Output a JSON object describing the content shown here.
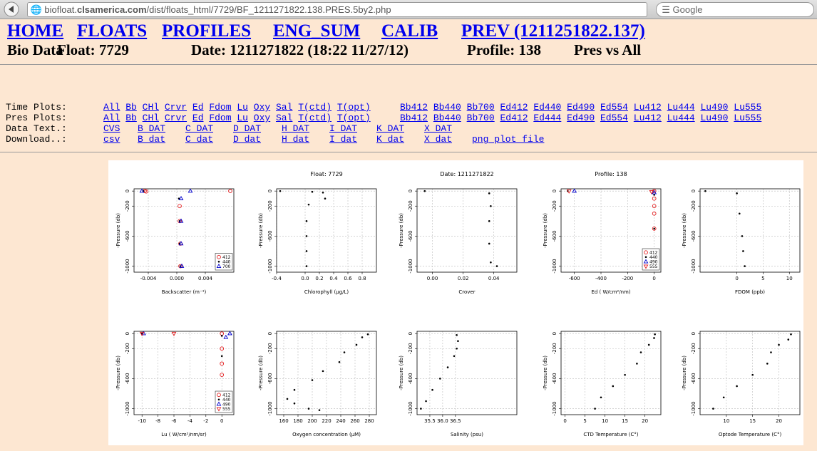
{
  "browser": {
    "url_prefix": "biofloat.",
    "url_domain": "clsamerica.com",
    "url_path": "/dist/floats_html/7729/BF_1211271822.138.PRES.5by2.php",
    "search": "Google"
  },
  "nav": [
    "HOME",
    "FLOATS",
    "PROFILES",
    "ENG_SUM",
    "CALIB",
    "PREV (1211251822.137)"
  ],
  "info": [
    "Bio Data",
    "Float: 7729",
    "Date: 1211271822 (18:22 11/27/12)",
    "Profile: 138",
    "Pres vs All"
  ],
  "link_table": [
    {
      "label": "Time Plots:",
      "groups": [
        [
          "All",
          "Bb",
          "CHl",
          "Crvr",
          "Ed",
          "Fdom",
          "Lu",
          "Oxy",
          "Sal",
          "T(ctd)",
          "T(opt)"
        ],
        [
          "Bb412",
          "Bb440",
          "Bb700",
          "Ed412",
          "Ed440",
          "Ed490",
          "Ed554",
          "Lu412",
          "Lu444",
          "Lu490",
          "Lu555"
        ]
      ]
    },
    {
      "label": "Pres Plots:",
      "groups": [
        [
          "All",
          "Bb",
          "CHl",
          "Crvr",
          "Ed",
          "Fdom",
          "Lu",
          "Oxy",
          "Sal",
          "T(ctd)",
          "T(opt)"
        ],
        [
          "Bb412",
          "Bb440",
          "Bb700",
          "Ed412",
          "Ed444",
          "Ed490",
          "Ed554",
          "Lu412",
          "Lu444",
          "Lu490",
          "Lu555"
        ]
      ]
    },
    {
      "label": "Data Text.:",
      "groups": [
        [
          "CVS",
          "B DAT",
          "C DAT",
          "D DAT",
          "H DAT",
          "I DAT",
          "K DAT",
          "X DAT"
        ]
      ]
    },
    {
      "label": "Download..:",
      "groups": [
        [
          "csv",
          "B dat",
          "C dat",
          "D dat",
          "H dat",
          "I dat",
          "K dat",
          "X dat",
          "png plot file"
        ]
      ]
    }
  ],
  "plots": {
    "titles": [
      "Float: 7729",
      "Date: 1211271822",
      "Profile: 138"
    ],
    "ylabel": "-Pressure (db)",
    "ylim": [
      -1080,
      30
    ],
    "yticks": [
      0,
      -200,
      -600,
      -1000
    ],
    "panels": [
      {
        "xlabel": "Backscatter (m⁻¹)",
        "xlim": [
          -0.006,
          0.008
        ],
        "xticks": [
          -0.004,
          {
            "value": 0,
            "label": "0.000"
          },
          0.004
        ],
        "legend": true,
        "series": [
          {
            "name": "412",
            "color": "#e41a1c",
            "marker": "circle-open",
            "x": [
              -0.0045,
              -0.0043,
              0.0075,
              0.0004,
              0.0004,
              0.0005,
              0.0005
            ],
            "y": [
              0,
              -5,
              0,
              -200,
              -400,
              -700,
              -1000
            ]
          },
          {
            "name": "440",
            "color": "#000000",
            "marker": "dot",
            "x": [
              -0.0047,
              0.0003,
              0.0004,
              0.0004,
              0.0005
            ],
            "y": [
              0,
              -100,
              -400,
              -700,
              -1000
            ]
          },
          {
            "name": "700",
            "color": "#0000cc",
            "marker": "triangle",
            "x": [
              -0.0049,
              0.0019,
              0.0006,
              0.0006,
              0.0006,
              0.0007
            ],
            "y": [
              0,
              0,
              -100,
              -400,
              -700,
              -1000
            ]
          }
        ]
      },
      {
        "xlabel": "Chlorophyll (µg/L)",
        "xlim": [
          -0.4,
          1.0
        ],
        "xticks": [
          -0.4,
          {
            "value": 0,
            "label": "0.0"
          },
          0.2,
          0.4,
          0.6,
          0.8
        ],
        "legend": false,
        "series": [
          {
            "color": "#000000",
            "marker": "dot",
            "x": [
              -0.35,
              0.1,
              0.25,
              0.28,
              0.05,
              0.02,
              0.02,
              0.02,
              0.02
            ],
            "y": [
              0,
              -10,
              -20,
              -100,
              -180,
              -400,
              -600,
              -800,
              -1000
            ]
          }
        ]
      },
      {
        "xlabel": "Crover",
        "xlim": [
          -0.01,
          0.055
        ],
        "xticks": [
          {
            "value": 0,
            "label": "0.00"
          },
          0.02,
          0.04
        ],
        "legend": false,
        "series": [
          {
            "color": "#000000",
            "marker": "dot",
            "x": [
              -0.005,
              0.037,
              0.038,
              0.037,
              0.037,
              0.038,
              0.042
            ],
            "y": [
              0,
              -30,
              -200,
              -400,
              -700,
              -950,
              -1000
            ]
          }
        ]
      },
      {
        "xlabel": "Ed ( W/cm²/nm)",
        "xlim": [
          -700,
          50
        ],
        "xticks": [
          -600,
          -400,
          -200,
          0
        ],
        "legend": true,
        "series": [
          {
            "name": "412",
            "color": "#e41a1c",
            "marker": "circle-open",
            "x": [
              0,
              0,
              0,
              0,
              0
            ],
            "y": [
              0,
              -100,
              -200,
              -300,
              -500
            ]
          },
          {
            "name": "440",
            "color": "#000000",
            "marker": "dot",
            "x": [
              -650,
              0,
              0
            ],
            "y": [
              0,
              -50,
              -500
            ]
          },
          {
            "name": "490",
            "color": "#0000cc",
            "marker": "triangle",
            "x": [
              -600,
              0
            ],
            "y": [
              0,
              -20
            ]
          },
          {
            "name": "555",
            "color": "#e41a1c",
            "marker": "triangle-down",
            "x": [
              -640,
              -20
            ],
            "y": [
              0,
              -10
            ]
          }
        ]
      },
      {
        "xlabel": "FDOM (ppb)",
        "xlim": [
          -7,
          12
        ],
        "xticks": [
          0,
          5,
          10
        ],
        "legend": false,
        "series": [
          {
            "color": "#000000",
            "marker": "dot",
            "x": [
              -6,
              0,
              0.5,
              1,
              1.2,
              1.5
            ],
            "y": [
              0,
              -30,
              -300,
              -600,
              -800,
              -1000
            ]
          }
        ]
      },
      {
        "xlabel": "Lu ( W/cm²/nm/sr)",
        "xlim": [
          -11,
          1.5
        ],
        "xticks": [
          -10,
          -8,
          -6,
          -4,
          -2,
          0
        ],
        "legend": true,
        "series": [
          {
            "name": "412",
            "color": "#e41a1c",
            "marker": "circle-open",
            "x": [
              0,
              0,
              0,
              0
            ],
            "y": [
              0,
              -200,
              -400,
              -550
            ]
          },
          {
            "name": "440",
            "color": "#000000",
            "marker": "dot",
            "x": [
              -10,
              0,
              0
            ],
            "y": [
              0,
              -30,
              -300
            ]
          },
          {
            "name": "490",
            "color": "#0000cc",
            "marker": "triangle",
            "x": [
              -9.8,
              1,
              0.5
            ],
            "y": [
              0,
              0,
              -50
            ]
          },
          {
            "name": "555",
            "color": "#e41a1c",
            "marker": "triangle-down",
            "x": [
              -6,
              -10
            ],
            "y": [
              0,
              0
            ]
          }
        ]
      },
      {
        "xlabel": "Oxygen concentration (µM)",
        "xlim": [
          150,
          290
        ],
        "xticks": [
          160,
          180,
          200,
          220,
          240,
          260,
          280
        ],
        "legend": false,
        "series": [
          {
            "color": "#000000",
            "marker": "dot",
            "x": [
              278,
              270,
              262,
              245,
              238,
              215,
              200,
              175,
              165,
              175,
              195,
              210
            ],
            "y": [
              -10,
              -50,
              -150,
              -250,
              -380,
              -500,
              -620,
              -750,
              -870,
              -930,
              -1000,
              -1020
            ]
          }
        ]
      },
      {
        "xlabel": "Salinity (psu)",
        "xlim": [
          35.0,
          38.9
        ],
        "xticks": [
          35.5,
          {
            "value": 36,
            "label": "36.0"
          },
          36.5
        ],
        "legend": false,
        "series": [
          {
            "color": "#000000",
            "marker": "dot",
            "x": [
              36.55,
              36.6,
              36.55,
              36.45,
              36.2,
              35.9,
              35.6,
              35.35,
              35.15
            ],
            "y": [
              -20,
              -100,
              -200,
              -300,
              -450,
              -600,
              -750,
              -900,
              -1000
            ]
          }
        ]
      },
      {
        "xlabel": "CTD Temperature (C°)",
        "xlim": [
          -1,
          24
        ],
        "xticks": [
          0,
          5,
          10,
          15,
          20
        ],
        "legend": false,
        "series": [
          {
            "color": "#000000",
            "marker": "dot",
            "x": [
              22.5,
              22.3,
              21,
              19,
              18,
              15,
              12,
              9,
              7.5
            ],
            "y": [
              -10,
              -60,
              -150,
              -250,
              -400,
              -550,
              -700,
              -850,
              -1000
            ]
          }
        ]
      },
      {
        "xlabel": "Optode Temperature (C°)",
        "xlim": [
          5,
          24
        ],
        "xticks": [
          10,
          15,
          20
        ],
        "legend": false,
        "series": [
          {
            "color": "#000000",
            "marker": "dot",
            "x": [
              22.3,
              21.8,
              20,
              18.5,
              17.8,
              15,
              12,
              9.5,
              7.5
            ],
            "y": [
              -10,
              -80,
              -150,
              -250,
              -400,
              -550,
              -700,
              -850,
              -1000
            ]
          }
        ]
      }
    ]
  }
}
